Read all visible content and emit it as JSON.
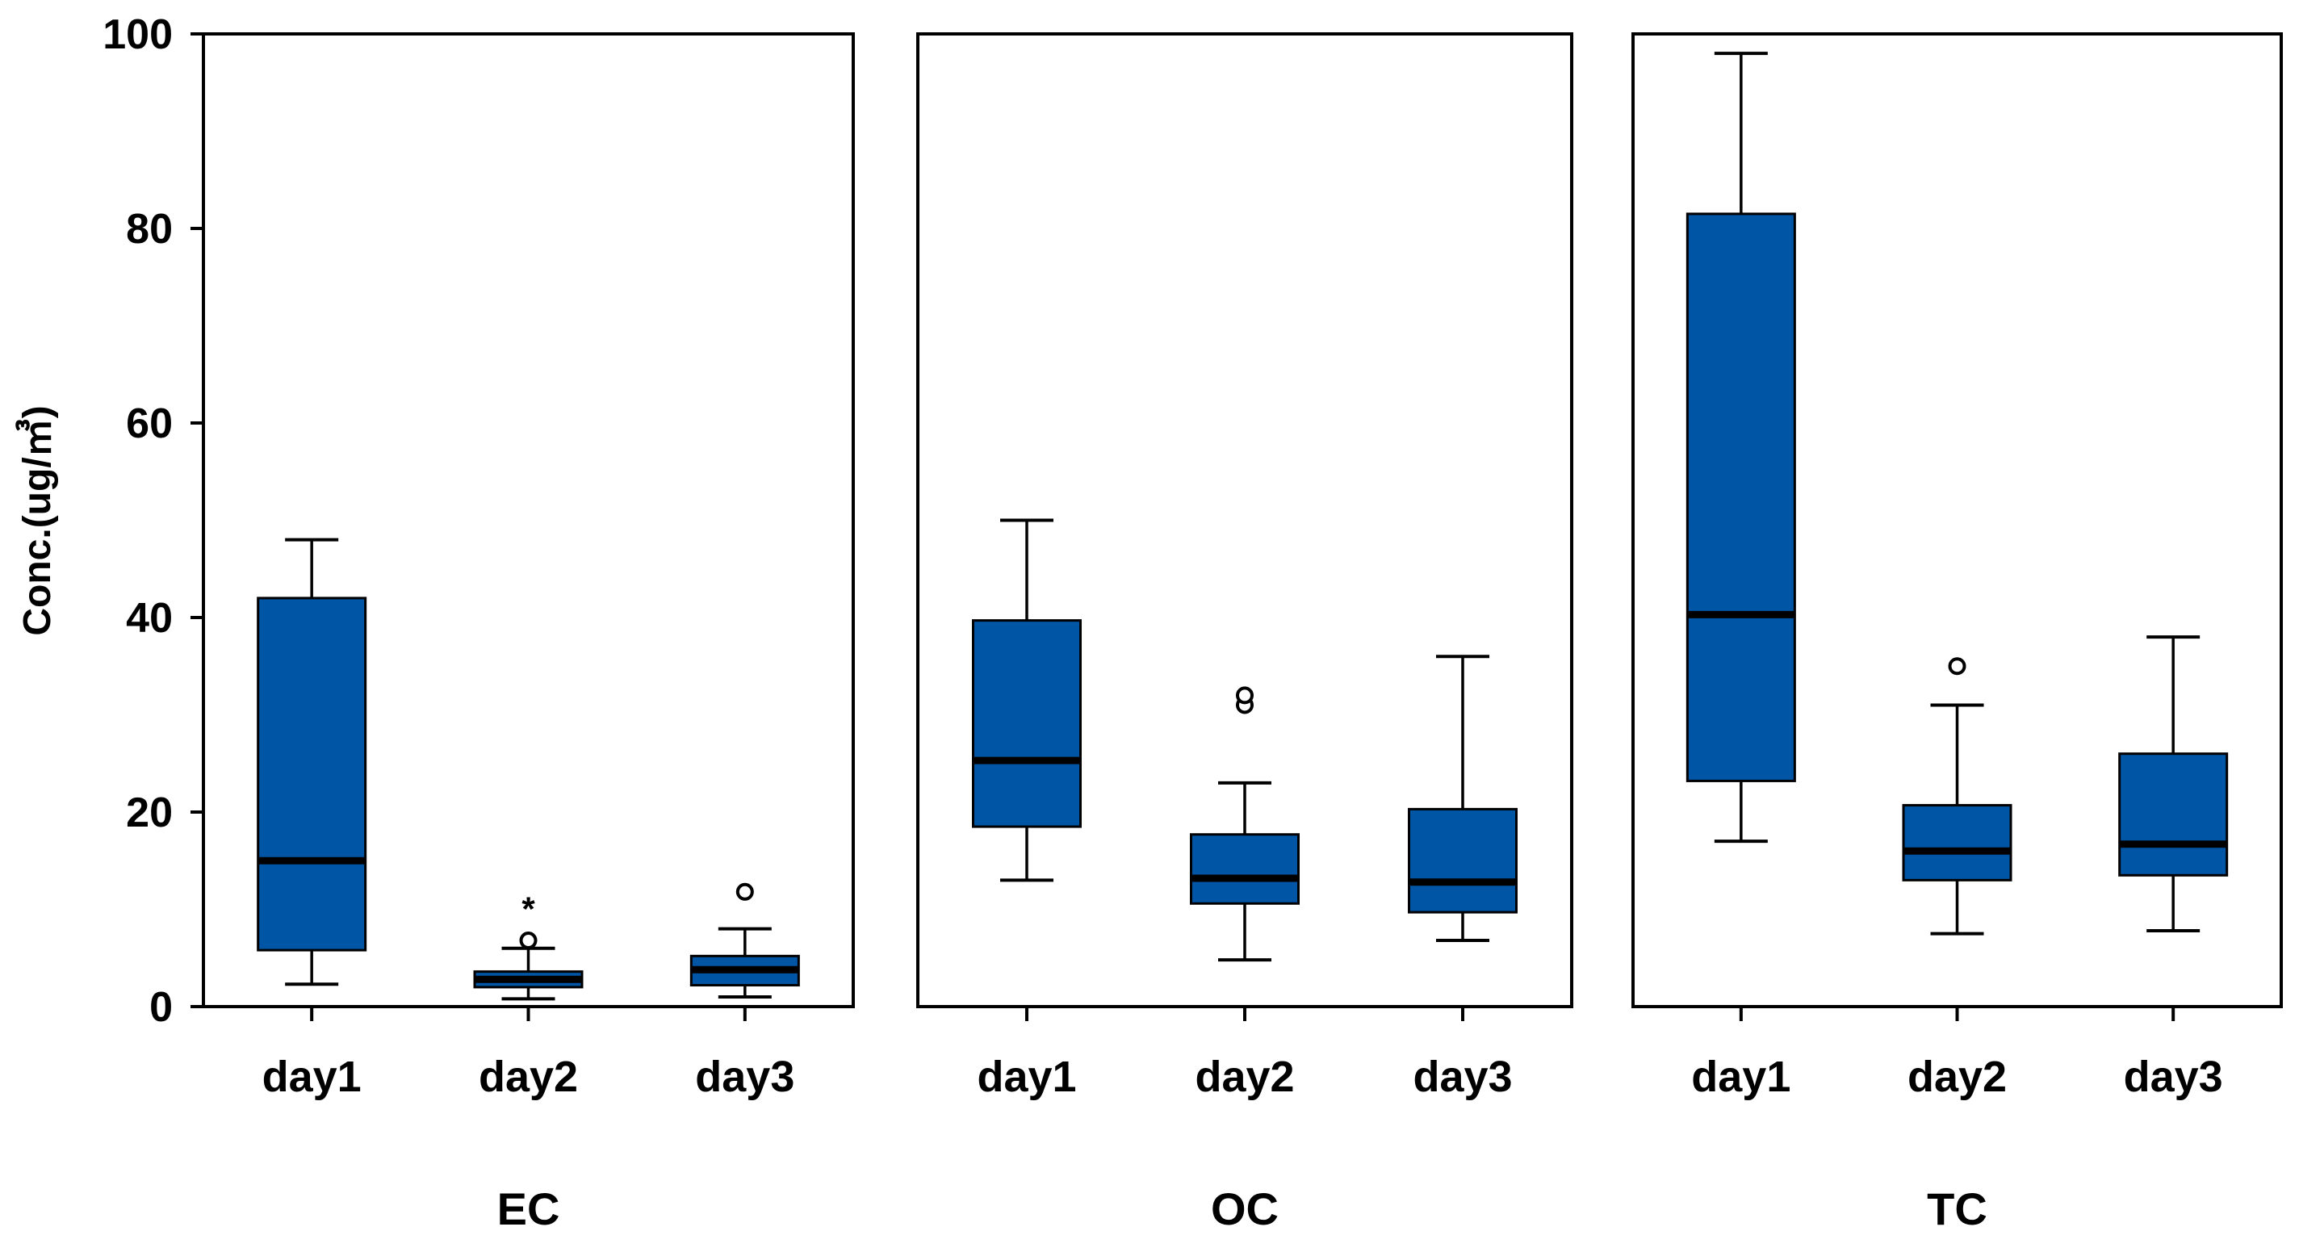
{
  "colors": {
    "box_fill": "#0055a5",
    "median": "#000000",
    "axis": "#000000",
    "background": "#ffffff"
  },
  "chart_data": {
    "type": "boxplot",
    "title": "",
    "ylabel": "Conc.(ug/㎥)",
    "ylim": [
      0,
      100
    ],
    "yticks": [
      0,
      20,
      40,
      60,
      80,
      100
    ],
    "panels": [
      {
        "label": "EC",
        "categories": [
          "day1",
          "day2",
          "day3"
        ],
        "boxes": [
          {
            "category": "day1",
            "whisker_low": 2.3,
            "q1": 5.8,
            "median": 15.0,
            "q3": 42.0,
            "whisker_high": 48.0,
            "outliers": [],
            "extremes": []
          },
          {
            "category": "day2",
            "whisker_low": 0.8,
            "q1": 2.0,
            "median": 2.8,
            "q3": 3.6,
            "whisker_high": 6.0,
            "outliers": [
              6.8
            ],
            "extremes": [
              10.5
            ]
          },
          {
            "category": "day3",
            "whisker_low": 1.0,
            "q1": 2.2,
            "median": 3.8,
            "q3": 5.2,
            "whisker_high": 8.0,
            "outliers": [
              11.8
            ],
            "extremes": []
          }
        ]
      },
      {
        "label": "OC",
        "categories": [
          "day1",
          "day2",
          "day3"
        ],
        "boxes": [
          {
            "category": "day1",
            "whisker_low": 13.0,
            "q1": 18.5,
            "median": 25.3,
            "q3": 39.7,
            "whisker_high": 50.0,
            "outliers": [],
            "extremes": []
          },
          {
            "category": "day2",
            "whisker_low": 4.8,
            "q1": 10.6,
            "median": 13.2,
            "q3": 17.7,
            "whisker_high": 23.0,
            "outliers": [
              31.0,
              32.0
            ],
            "extremes": []
          },
          {
            "category": "day3",
            "whisker_low": 6.8,
            "q1": 9.7,
            "median": 12.8,
            "q3": 20.3,
            "whisker_high": 36.0,
            "outliers": [],
            "extremes": []
          }
        ]
      },
      {
        "label": "TC",
        "categories": [
          "day1",
          "day2",
          "day3"
        ],
        "boxes": [
          {
            "category": "day1",
            "whisker_low": 17.0,
            "q1": 23.2,
            "median": 40.3,
            "q3": 81.5,
            "whisker_high": 98.0,
            "outliers": [],
            "extremes": []
          },
          {
            "category": "day2",
            "whisker_low": 7.5,
            "q1": 13.0,
            "median": 16.0,
            "q3": 20.7,
            "whisker_high": 31.0,
            "outliers": [
              35.0
            ],
            "extremes": []
          },
          {
            "category": "day3",
            "whisker_low": 7.8,
            "q1": 13.5,
            "median": 16.7,
            "q3": 26.0,
            "whisker_high": 38.0,
            "outliers": [],
            "extremes": []
          }
        ]
      }
    ]
  }
}
